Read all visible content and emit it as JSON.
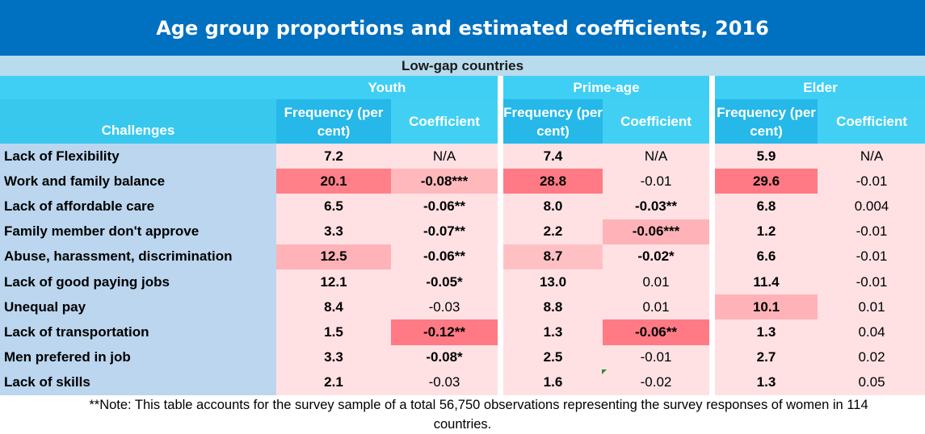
{
  "title": "Age group proportions and estimated coefficients, 2016",
  "subtitle": "Low-gap countries",
  "groups": [
    "Youth",
    "Prime-age",
    "Elder"
  ],
  "row_header": "Challenges",
  "freq_header": "Frequency (per cent)",
  "coef_header": "Coefficient",
  "colors": {
    "title_bg": "#0070c0",
    "header_bg": "#2ec4ee",
    "label_bg": "#bbd6ee",
    "cell_bg": "#ffe1e4"
  },
  "rows": [
    {
      "label": "Lack of Flexibility",
      "cells": [
        {
          "v": "7.2",
          "b": true,
          "bg": "#ffe1e4"
        },
        {
          "v": "N/A",
          "b": false,
          "bg": "#ffe1e4"
        },
        {
          "v": "7.4",
          "b": true,
          "bg": "#ffe1e4"
        },
        {
          "v": "N/A",
          "b": false,
          "bg": "#ffe1e4"
        },
        {
          "v": "5.9",
          "b": true,
          "bg": "#ffe1e4"
        },
        {
          "v": "N/A",
          "b": false,
          "bg": "#ffe1e4"
        }
      ]
    },
    {
      "label": "Work and family balance",
      "cells": [
        {
          "v": "20.1",
          "b": true,
          "bg": "#ff8088"
        },
        {
          "v": "-0.08***",
          "b": true,
          "bg": "#ffb9bd"
        },
        {
          "v": "28.8",
          "b": true,
          "bg": "#ff7a84"
        },
        {
          "v": "-0.01",
          "b": false,
          "bg": "#ffe1e4"
        },
        {
          "v": "29.6",
          "b": true,
          "bg": "#ff7a84"
        },
        {
          "v": "-0.01",
          "b": false,
          "bg": "#ffe1e4"
        }
      ]
    },
    {
      "label": "Lack of affordable care",
      "cells": [
        {
          "v": "6.5",
          "b": true,
          "bg": "#ffe1e4"
        },
        {
          "v": "-0.06**",
          "b": true,
          "bg": "#ffe1e4"
        },
        {
          "v": "8.0",
          "b": true,
          "bg": "#ffe1e4"
        },
        {
          "v": "-0.03**",
          "b": true,
          "bg": "#ffe1e4"
        },
        {
          "v": "6.8",
          "b": true,
          "bg": "#ffe1e4"
        },
        {
          "v": "0.004",
          "b": false,
          "bg": "#ffe1e4"
        }
      ]
    },
    {
      "label": "Family member don't approve",
      "cells": [
        {
          "v": "3.3",
          "b": true,
          "bg": "#ffe1e4"
        },
        {
          "v": "-0.07**",
          "b": true,
          "bg": "#ffe1e4"
        },
        {
          "v": "2.2",
          "b": true,
          "bg": "#ffe1e4"
        },
        {
          "v": "-0.06***",
          "b": true,
          "bg": "#ffb3b8"
        },
        {
          "v": "1.2",
          "b": true,
          "bg": "#ffe1e4"
        },
        {
          "v": "-0.01",
          "b": false,
          "bg": "#ffe1e4"
        }
      ]
    },
    {
      "label": "Abuse, harassment, discrimination",
      "cells": [
        {
          "v": "12.5",
          "b": true,
          "bg": "#ffb3b8"
        },
        {
          "v": "-0.06**",
          "b": true,
          "bg": "#ffe1e4"
        },
        {
          "v": "8.7",
          "b": true,
          "bg": "#ffc0c4"
        },
        {
          "v": "-0.02*",
          "b": true,
          "bg": "#ffe1e4"
        },
        {
          "v": "6.6",
          "b": true,
          "bg": "#ffe1e4"
        },
        {
          "v": "-0.01",
          "b": false,
          "bg": "#ffe1e4"
        }
      ]
    },
    {
      "label": "Lack of good paying jobs",
      "cells": [
        {
          "v": "12.1",
          "b": true,
          "bg": "#ffe1e4"
        },
        {
          "v": "-0.05*",
          "b": true,
          "bg": "#ffe1e4"
        },
        {
          "v": "13.0",
          "b": true,
          "bg": "#ffe1e4"
        },
        {
          "v": "0.01",
          "b": false,
          "bg": "#ffe1e4"
        },
        {
          "v": "11.4",
          "b": true,
          "bg": "#ffe1e4"
        },
        {
          "v": "-0.01",
          "b": false,
          "bg": "#ffe1e4"
        }
      ]
    },
    {
      "label": "Unequal pay",
      "cells": [
        {
          "v": "8.4",
          "b": true,
          "bg": "#ffe1e4"
        },
        {
          "v": "-0.03",
          "b": false,
          "bg": "#ffe1e4"
        },
        {
          "v": "8.8",
          "b": true,
          "bg": "#ffe1e4"
        },
        {
          "v": "0.01",
          "b": false,
          "bg": "#ffe1e4"
        },
        {
          "v": "10.1",
          "b": true,
          "bg": "#ffb3b8"
        },
        {
          "v": "0.01",
          "b": false,
          "bg": "#ffe1e4"
        }
      ]
    },
    {
      "label": "Lack of transportation",
      "cells": [
        {
          "v": "1.5",
          "b": true,
          "bg": "#ffe1e4"
        },
        {
          "v": "-0.12**",
          "b": true,
          "bg": "#ff7a84"
        },
        {
          "v": "1.3",
          "b": true,
          "bg": "#ffe1e4"
        },
        {
          "v": "-0.06**",
          "b": true,
          "bg": "#ff7a84"
        },
        {
          "v": "1.3",
          "b": true,
          "bg": "#ffe1e4"
        },
        {
          "v": "0.04",
          "b": false,
          "bg": "#ffe1e4"
        }
      ]
    },
    {
      "label": "Men prefered in job",
      "cells": [
        {
          "v": "3.3",
          "b": true,
          "bg": "#ffe1e4"
        },
        {
          "v": "-0.08*",
          "b": true,
          "bg": "#ffe1e4"
        },
        {
          "v": "2.5",
          "b": true,
          "bg": "#ffe1e4"
        },
        {
          "v": "-0.01",
          "b": false,
          "bg": "#ffe1e4"
        },
        {
          "v": "2.7",
          "b": true,
          "bg": "#ffe1e4"
        },
        {
          "v": "0.02",
          "b": false,
          "bg": "#ffe1e4"
        }
      ]
    },
    {
      "label": "Lack of skills",
      "cells": [
        {
          "v": "2.1",
          "b": true,
          "bg": "#ffe1e4"
        },
        {
          "v": "-0.03",
          "b": false,
          "bg": "#ffe1e4"
        },
        {
          "v": "1.6",
          "b": true,
          "bg": "#ffe1e4"
        },
        {
          "v": "-0.02",
          "b": false,
          "bg": "#ffe1e4"
        },
        {
          "v": "1.3",
          "b": true,
          "bg": "#ffe1e4"
        },
        {
          "v": "0.05",
          "b": false,
          "bg": "#ffe1e4"
        }
      ]
    }
  ],
  "note_line1": "**Note: This table accounts for the survey sample of a total 56,750 observations representing the survey responses of women in 114",
  "note_line2": "countries.",
  "chart_data": {
    "type": "table",
    "title": "Age group proportions and estimated coefficients, 2016",
    "subtitle": "Low-gap countries",
    "columns": [
      "Challenges",
      "Youth Frequency (per cent)",
      "Youth Coefficient",
      "Prime-age Frequency (per cent)",
      "Prime-age Coefficient",
      "Elder Frequency (per cent)",
      "Elder Coefficient"
    ],
    "rows": [
      [
        "Lack of Flexibility",
        "7.2",
        "N/A",
        "7.4",
        "N/A",
        "5.9",
        "N/A"
      ],
      [
        "Work and family balance",
        "20.1",
        "-0.08***",
        "28.8",
        "-0.01",
        "29.6",
        "-0.01"
      ],
      [
        "Lack of affordable care",
        "6.5",
        "-0.06**",
        "8.0",
        "-0.03**",
        "6.8",
        "0.004"
      ],
      [
        "Family member don't approve",
        "3.3",
        "-0.07**",
        "2.2",
        "-0.06***",
        "1.2",
        "-0.01"
      ],
      [
        "Abuse, harassment, discrimination",
        "12.5",
        "-0.06**",
        "8.7",
        "-0.02*",
        "6.6",
        "-0.01"
      ],
      [
        "Lack of good paying jobs",
        "12.1",
        "-0.05*",
        "13.0",
        "0.01",
        "11.4",
        "-0.01"
      ],
      [
        "Unequal pay",
        "8.4",
        "-0.03",
        "8.8",
        "0.01",
        "10.1",
        "0.01"
      ],
      [
        "Lack of transportation",
        "1.5",
        "-0.12**",
        "1.3",
        "-0.06**",
        "1.3",
        "0.04"
      ],
      [
        "Men prefered in job",
        "3.3",
        "-0.08*",
        "2.5",
        "-0.01",
        "2.7",
        "0.02"
      ],
      [
        "Lack of skills",
        "2.1",
        "-0.03",
        "1.6",
        "-0.02",
        "1.3",
        "0.05"
      ]
    ]
  }
}
